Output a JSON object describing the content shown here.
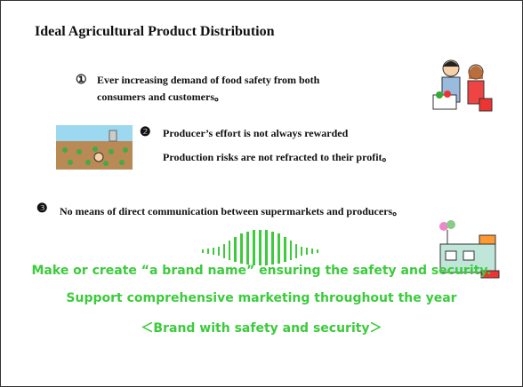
{
  "title": "Ideal Agricultural  Product Distribution",
  "points": [
    {
      "marker": "①",
      "lines": [
        "Ever increasing demand of food safety from both",
        "consumers and customers。"
      ]
    },
    {
      "marker": "❷",
      "lines": [
        "Producer’s effort is not always rewarded",
        "Production risks are not refracted to their profit。"
      ]
    },
    {
      "marker": "❸",
      "lines": [
        "No means of direct communication between supermarkets and producers。"
      ]
    }
  ],
  "conclusion": [
    "Make  or create “a brand name” ensuring the safety and security.",
    "Support comprehensive marketing throughout the year",
    "＜Brand with safety and security＞"
  ]
}
